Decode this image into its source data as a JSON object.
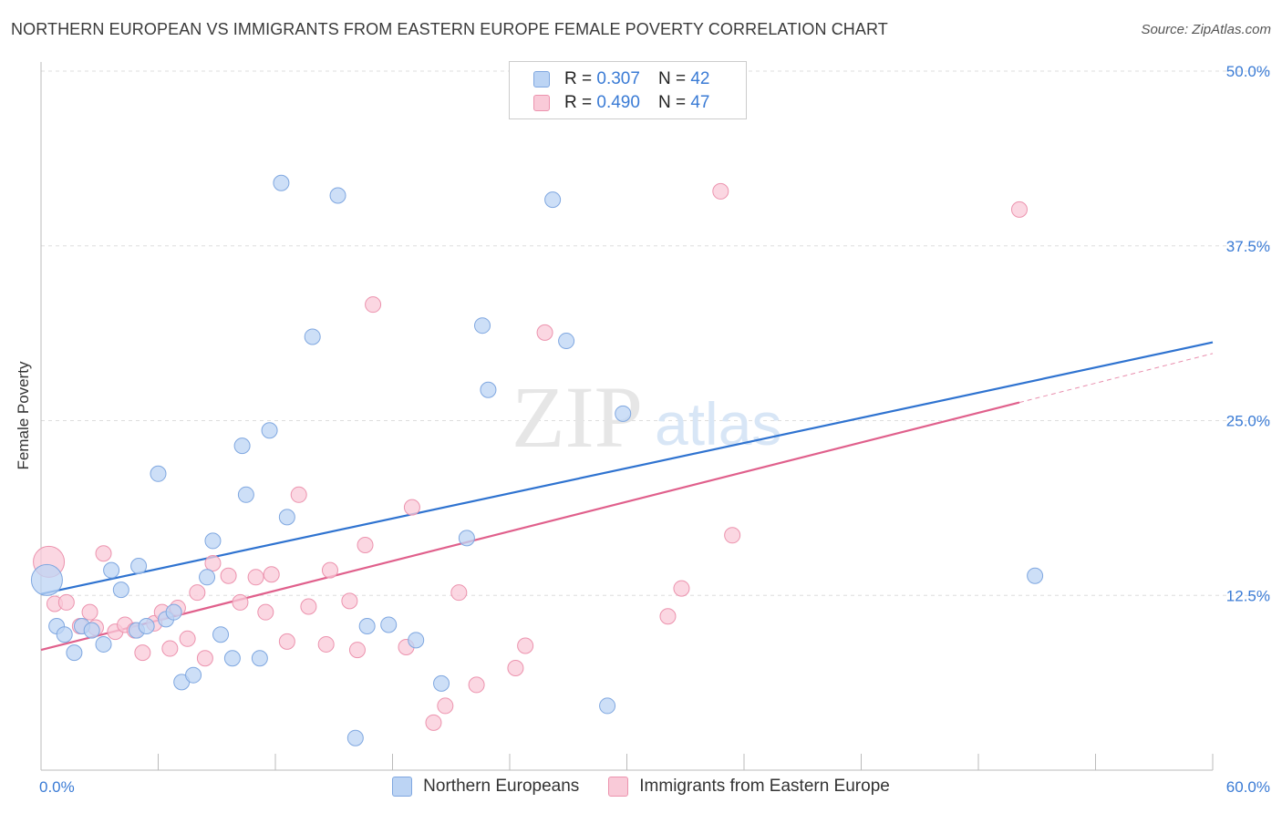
{
  "header": {
    "title": "NORTHERN EUROPEAN VS IMMIGRANTS FROM EASTERN EUROPE FEMALE POVERTY CORRELATION CHART",
    "source": "Source: ZipAtlas.com"
  },
  "watermark": {
    "text_zip": "ZIP",
    "text_atlas": "atlas"
  },
  "legend": {
    "rows": [
      {
        "r_label": "R =",
        "r_value": "0.307",
        "n_label": "N =",
        "n_value": "42",
        "color": "#a9c8f0"
      },
      {
        "r_label": "R =",
        "r_value": "0.490",
        "n_label": "N =",
        "n_value": "47",
        "color": "#f5b7c9"
      }
    ]
  },
  "colors": {
    "blue_fill": "#bcd4f4",
    "blue_stroke": "#7fa7e0",
    "blue_line": "#2f73d0",
    "pink_fill": "#f9cad8",
    "pink_stroke": "#ec93ae",
    "pink_line": "#e0608c",
    "tick_label": "#3a7bd5",
    "grid": "#dddddd"
  },
  "chart_data": {
    "type": "scatter",
    "title": "NORTHERN EUROPEAN VS IMMIGRANTS FROM EASTERN EUROPE FEMALE POVERTY CORRELATION CHART",
    "xlabel": "",
    "ylabel": "Female Poverty",
    "xlim": [
      0,
      60
    ],
    "ylim": [
      0,
      50
    ],
    "x_tick_labels": [
      "0.0%",
      "60.0%"
    ],
    "y_ticks": [
      12.5,
      25.0,
      37.5,
      50.0
    ],
    "y_tick_labels": [
      "12.5%",
      "25.0%",
      "37.5%",
      "50.0%"
    ],
    "grid": true,
    "legend_position": "bottom-center",
    "series": [
      {
        "name": "Northern Europeans",
        "r": 0.307,
        "n": 42,
        "points": [
          [
            0.3,
            13.6
          ],
          [
            0.8,
            10.3
          ],
          [
            1.2,
            9.7
          ],
          [
            1.7,
            8.4
          ],
          [
            2.1,
            10.3
          ],
          [
            2.6,
            10.0
          ],
          [
            3.2,
            9.0
          ],
          [
            3.6,
            14.3
          ],
          [
            4.1,
            12.9
          ],
          [
            4.9,
            10.0
          ],
          [
            5.0,
            14.6
          ],
          [
            5.4,
            10.3
          ],
          [
            6.0,
            21.2
          ],
          [
            6.4,
            10.8
          ],
          [
            6.8,
            11.3
          ],
          [
            7.2,
            6.3
          ],
          [
            7.8,
            6.8
          ],
          [
            8.5,
            13.8
          ],
          [
            8.8,
            16.4
          ],
          [
            9.2,
            9.7
          ],
          [
            9.8,
            8.0
          ],
          [
            10.3,
            23.2
          ],
          [
            10.5,
            19.7
          ],
          [
            11.2,
            8.0
          ],
          [
            11.7,
            24.3
          ],
          [
            12.3,
            42.0
          ],
          [
            12.6,
            18.1
          ],
          [
            13.9,
            31.0
          ],
          [
            15.2,
            41.1
          ],
          [
            16.1,
            2.3
          ],
          [
            16.7,
            10.3
          ],
          [
            17.8,
            10.4
          ],
          [
            19.2,
            9.3
          ],
          [
            20.5,
            6.2
          ],
          [
            21.8,
            16.6
          ],
          [
            22.6,
            31.8
          ],
          [
            22.9,
            27.2
          ],
          [
            26.2,
            40.8
          ],
          [
            26.9,
            30.7
          ],
          [
            29.0,
            4.6
          ],
          [
            29.8,
            25.5
          ],
          [
            50.9,
            13.9
          ]
        ],
        "trend": {
          "x": [
            0,
            60
          ],
          "y": [
            12.6,
            30.6
          ]
        }
      },
      {
        "name": "Immigrants from Eastern Europe",
        "r": 0.49,
        "n": 47,
        "points": [
          [
            0.4,
            14.9
          ],
          [
            0.7,
            11.9
          ],
          [
            1.3,
            12.0
          ],
          [
            2.0,
            10.3
          ],
          [
            2.5,
            11.3
          ],
          [
            2.8,
            10.2
          ],
          [
            3.2,
            15.5
          ],
          [
            3.8,
            9.9
          ],
          [
            4.3,
            10.4
          ],
          [
            4.8,
            10.0
          ],
          [
            5.2,
            8.4
          ],
          [
            5.8,
            10.5
          ],
          [
            6.2,
            11.3
          ],
          [
            6.6,
            8.7
          ],
          [
            7.0,
            11.6
          ],
          [
            7.5,
            9.4
          ],
          [
            8.0,
            12.7
          ],
          [
            8.4,
            8.0
          ],
          [
            8.8,
            14.8
          ],
          [
            9.6,
            13.9
          ],
          [
            10.2,
            12.0
          ],
          [
            11.0,
            13.8
          ],
          [
            11.5,
            11.3
          ],
          [
            11.8,
            14.0
          ],
          [
            12.6,
            9.2
          ],
          [
            13.2,
            19.7
          ],
          [
            13.7,
            11.7
          ],
          [
            14.6,
            9.0
          ],
          [
            14.8,
            14.3
          ],
          [
            15.8,
            12.1
          ],
          [
            16.2,
            8.6
          ],
          [
            16.6,
            16.1
          ],
          [
            17.0,
            33.3
          ],
          [
            18.7,
            8.8
          ],
          [
            19.0,
            18.8
          ],
          [
            20.1,
            3.4
          ],
          [
            20.7,
            4.6
          ],
          [
            21.4,
            12.7
          ],
          [
            22.3,
            6.1
          ],
          [
            24.3,
            7.3
          ],
          [
            24.8,
            8.9
          ],
          [
            25.8,
            31.3
          ],
          [
            32.1,
            11.0
          ],
          [
            32.8,
            13.0
          ],
          [
            34.8,
            41.4
          ],
          [
            35.4,
            16.8
          ],
          [
            50.1,
            40.1
          ]
        ],
        "trend": {
          "x": [
            0,
            50.1
          ],
          "y": [
            8.6,
            26.3
          ]
        },
        "trend_dashed": {
          "x": [
            50.1,
            60
          ],
          "y": [
            26.3,
            29.8
          ]
        }
      }
    ]
  }
}
